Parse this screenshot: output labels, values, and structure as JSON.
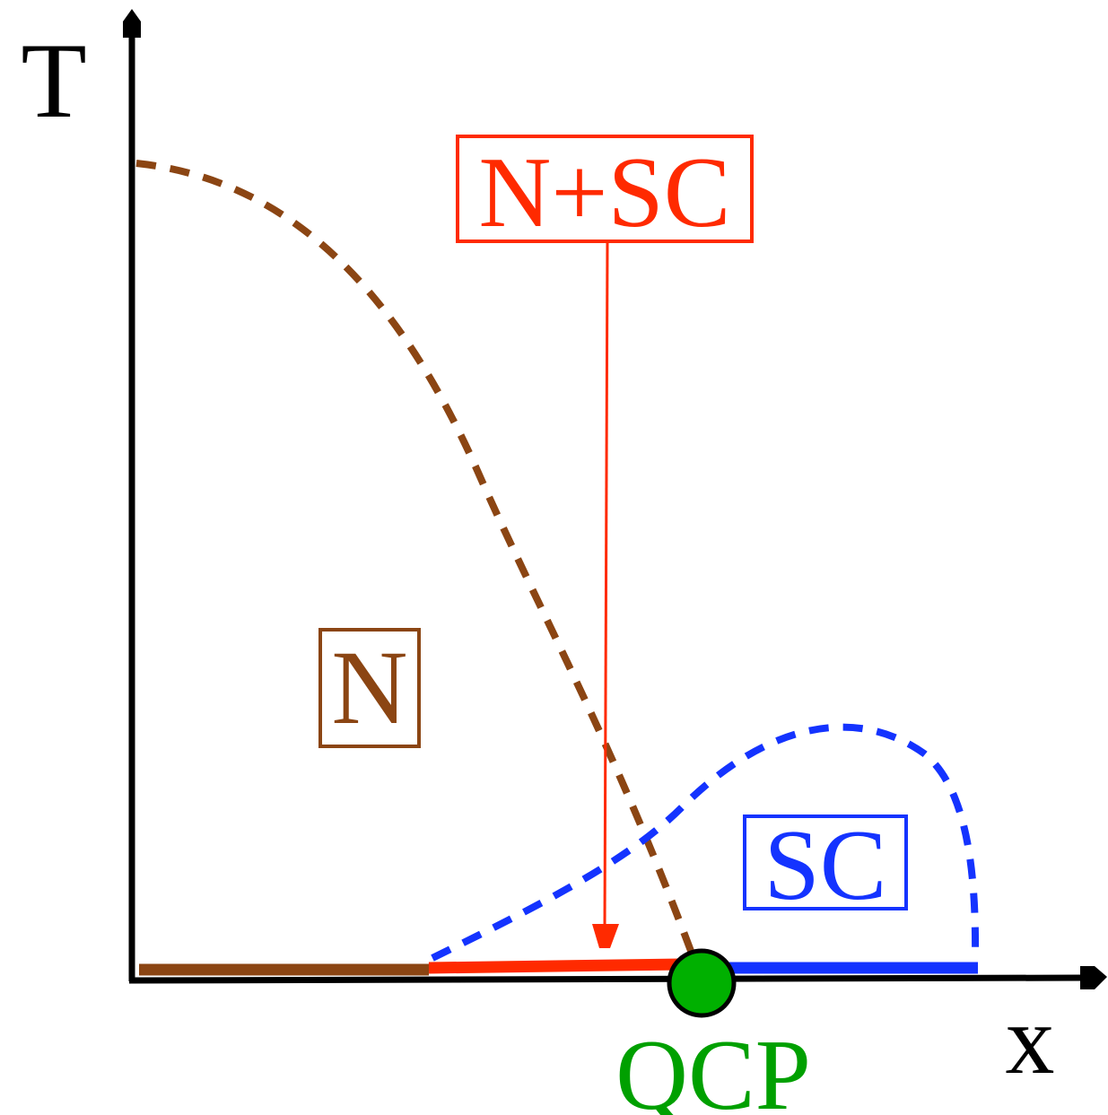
{
  "axes": {
    "y_label": "T",
    "x_label": "x"
  },
  "regions": {
    "normal": {
      "label": "N",
      "color": "#8B4513"
    },
    "coexistence": {
      "label": "N+SC",
      "color": "#FF2A00"
    },
    "superconducting": {
      "label": "SC",
      "color": "#1433FF"
    }
  },
  "critical_point": {
    "label": "QCP",
    "color": "#00A000",
    "fill": "#00B000"
  },
  "colors": {
    "axis": "#000000",
    "normal_line": "#8B4513",
    "sc_line": "#1433FF",
    "coexistence_line": "#FF2A00"
  }
}
